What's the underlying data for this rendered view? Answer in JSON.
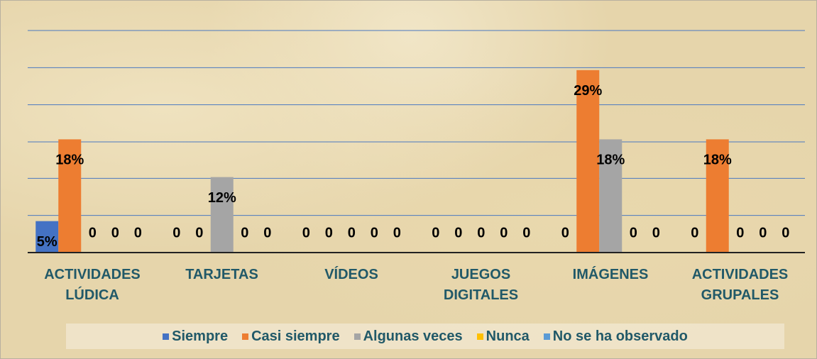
{
  "chart_data": {
    "type": "bar",
    "categories": [
      "ACTIVIDADES LÚDICA",
      "TARJETAS",
      "VÍDEOS",
      "JUEGOS DIGITALES",
      "IMÁGENES",
      "ACTIVIDADES GRUPALES"
    ],
    "series": [
      {
        "name": "Siempre",
        "color": "#4472c4",
        "values": [
          5,
          0,
          0,
          0,
          0,
          0
        ],
        "value_labels": [
          "5%",
          "0",
          "0",
          "0",
          "0",
          "0"
        ]
      },
      {
        "name": "Casi siempre",
        "color": "#ed7d31",
        "values": [
          18,
          0,
          0,
          0,
          29,
          18
        ],
        "value_labels": [
          "18%",
          "0",
          "0",
          "0",
          "29%",
          "18%"
        ]
      },
      {
        "name": "Algunas veces",
        "color": "#a5a5a5",
        "values": [
          0,
          12,
          0,
          0,
          18,
          0
        ],
        "value_labels": [
          "0",
          "12%",
          "0",
          "0",
          "18%",
          "0"
        ]
      },
      {
        "name": "Nunca",
        "color": "#ffc000",
        "values": [
          0,
          0,
          0,
          0,
          0,
          0
        ],
        "value_labels": [
          "0",
          "0",
          "0",
          "0",
          "0",
          "0"
        ]
      },
      {
        "name": "No se ha observado",
        "color": "#5b9bd5",
        "values": [
          0,
          0,
          0,
          0,
          0,
          0
        ],
        "value_labels": [
          "0",
          "0",
          "0",
          "0",
          "0",
          "0"
        ]
      }
    ],
    "ylim": [
      0,
      35.3
    ],
    "yticks": [
      5.9,
      11.8,
      17.6,
      23.5,
      29.4,
      35.3
    ],
    "grid": true,
    "legend": "bottom"
  }
}
